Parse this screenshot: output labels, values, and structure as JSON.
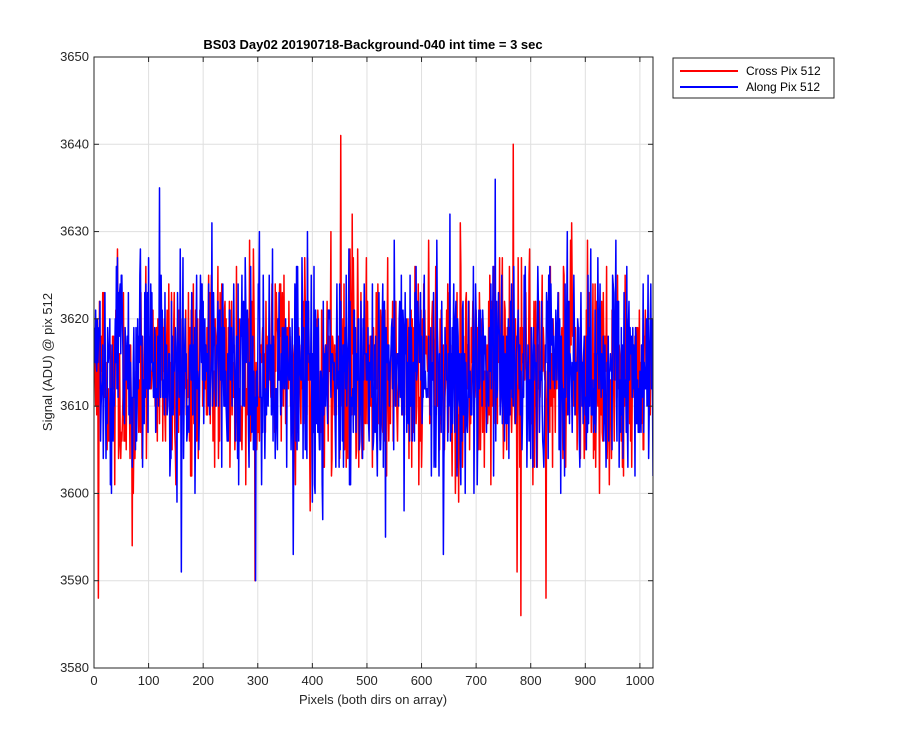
{
  "chart_data": {
    "type": "line",
    "title": "BS03 Day02 20190718-Background-040 int time = 3 sec",
    "xlabel": "Pixels (both dirs on array)",
    "ylabel": "Signal (ADU) @ pix 512",
    "xlim": [
      0,
      1024
    ],
    "ylim": [
      3580,
      3650
    ],
    "x_ticks": [
      "0",
      "100",
      "200",
      "300",
      "400",
      "500",
      "600",
      "700",
      "800",
      "900",
      "1000"
    ],
    "y_ticks": [
      "3580",
      "3590",
      "3600",
      "3610",
      "3620",
      "3630",
      "3640",
      "3650"
    ],
    "grid": true,
    "legend_placement": "outside-top-right",
    "colors": {
      "cross": "#ff0000",
      "along": "#0000ff"
    },
    "series": [
      {
        "name": "Cross Pix 512",
        "color": "#ff0000",
        "x_start": 1,
        "x_step": 1,
        "count": 1024,
        "mean": 3614,
        "std": 6,
        "ymin": 3586,
        "ymax": 3641,
        "spikes": [
          [
            452,
            3641
          ],
          [
            768,
            3640
          ],
          [
            295,
            3590
          ],
          [
            782,
            3586
          ],
          [
            775,
            3591
          ],
          [
            828,
            3588
          ],
          [
            8,
            3588
          ],
          [
            70,
            3594
          ]
        ]
      },
      {
        "name": "Along Pix 512",
        "color": "#0000ff",
        "x_start": 1,
        "x_step": 1,
        "count": 1024,
        "mean": 3614,
        "std": 6,
        "ymin": 3590,
        "ymax": 3636,
        "spikes": [
          [
            120,
            3635
          ],
          [
            735,
            3636
          ],
          [
            296,
            3590
          ],
          [
            160,
            3591
          ],
          [
            365,
            3593
          ],
          [
            640,
            3593
          ]
        ]
      }
    ]
  }
}
